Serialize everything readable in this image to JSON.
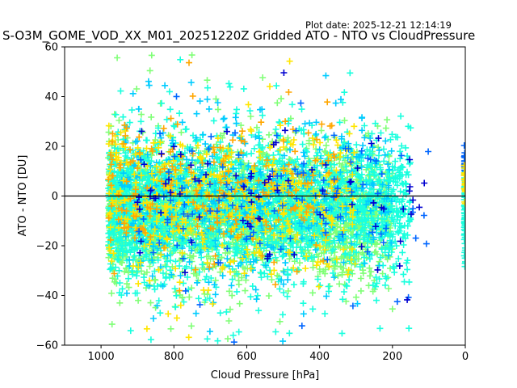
{
  "chart_data": {
    "type": "scatter",
    "title": "S-O3M_GOME_VOD_XX_M01_20251220Z Gridded ATO - NTO vs CloudPressure",
    "plot_date": "Plot date: 2025-12-21 12:14:19",
    "xlabel": "Cloud Pressure [hPa]",
    "ylabel": "ATO - NTO [DU]",
    "xlim": [
      1100,
      0
    ],
    "ylim": [
      -60,
      60
    ],
    "x_ticks": [
      1000,
      800,
      600,
      400,
      200,
      0
    ],
    "x_tick_labels": [
      "1000",
      "800",
      "600",
      "400",
      "200",
      "0"
    ],
    "y_ticks": [
      -60,
      -40,
      -20,
      0,
      20,
      40,
      60
    ],
    "y_tick_labels": [
      "−60",
      "−40",
      "−20",
      "0",
      "20",
      "40",
      "60"
    ],
    "x_axis_inverted": true,
    "grid": false,
    "legend": "none",
    "marker": "+",
    "reference_line_y": 0,
    "point_colors": [
      "#80ff77",
      "#19ffde",
      "#00ccff",
      "#ffe600",
      "#ffa600",
      "#0066ff",
      "#0000d0"
    ],
    "clusters": [
      {
        "x_range": [
          980,
          200
        ],
        "y_center": -6,
        "y_spread": 12,
        "count": 2600,
        "color": "#80ff77"
      },
      {
        "x_range": [
          980,
          150
        ],
        "y_center": -4,
        "y_spread": 14,
        "count": 2200,
        "color": "#19ffde"
      },
      {
        "x_range": [
          950,
          200
        ],
        "y_center": -2,
        "y_spread": 17,
        "count": 500,
        "color": "#00ccff"
      },
      {
        "x_range": [
          980,
          300
        ],
        "y_center": -2,
        "y_spread": 15,
        "count": 450,
        "color": "#ffe600"
      },
      {
        "x_range": [
          980,
          350
        ],
        "y_center": 2,
        "y_spread": 15,
        "count": 220,
        "color": "#ffa600"
      },
      {
        "x_range": [
          900,
          100
        ],
        "y_center": 0,
        "y_spread": 17,
        "count": 120,
        "color": "#0066ff"
      },
      {
        "x_range": [
          900,
          100
        ],
        "y_center": 0,
        "y_spread": 16,
        "count": 80,
        "color": "#0000d0"
      },
      {
        "x_range": [
          3,
          0
        ],
        "y_center": -5,
        "y_spread": 10,
        "count": 80,
        "color": "#19ffde"
      },
      {
        "x_range": [
          3,
          0
        ],
        "y_center": 15,
        "y_spread": 4,
        "count": 20,
        "color": "#0066ff"
      },
      {
        "x_range": [
          3,
          0
        ],
        "y_center": 5,
        "y_spread": 4,
        "count": 20,
        "color": "#ffe600"
      }
    ]
  }
}
